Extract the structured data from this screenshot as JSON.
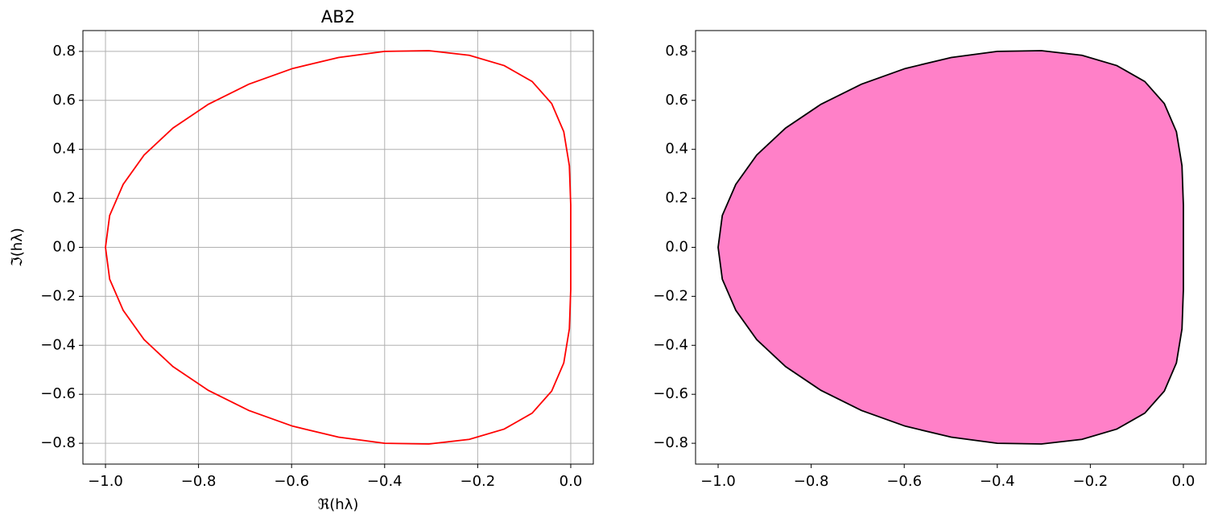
{
  "chart_data": [
    {
      "type": "line",
      "title": "AB2",
      "xlabel": "ℜ(hλ)",
      "ylabel": "ℑ(hλ)",
      "grid": true,
      "series": [
        {
          "color": "#ff0000",
          "x": [
            0,
            0,
            -0.003,
            -0.015,
            -0.041,
            -0.083,
            -0.143,
            -0.218,
            -0.305,
            -0.4,
            -0.499,
            -0.598,
            -0.692,
            -0.779,
            -0.855,
            -0.917,
            -0.962,
            -0.991,
            -1,
            -0.991,
            -0.962,
            -0.917,
            -0.855,
            -0.779,
            -0.692,
            -0.598,
            -0.499,
            -0.4,
            -0.305,
            -0.218,
            -0.143,
            -0.083,
            -0.041,
            -0.015,
            -0.003,
            0,
            0
          ],
          "values": [
            0,
            0.172,
            0.333,
            0.472,
            0.587,
            0.677,
            0.742,
            0.784,
            0.803,
            0.8,
            0.775,
            0.73,
            0.666,
            0.584,
            0.487,
            0.377,
            0.257,
            0.13,
            0,
            -0.13,
            -0.257,
            -0.377,
            -0.487,
            -0.584,
            -0.666,
            -0.73,
            -0.775,
            -0.8,
            -0.803,
            -0.784,
            -0.742,
            -0.677,
            -0.587,
            -0.472,
            -0.333,
            -0.172,
            0
          ]
        }
      ],
      "xlim": [
        -1.0485,
        0.0485
      ],
      "ylim": [
        -0.885,
        0.885
      ],
      "xticks": [
        {
          "value": -1,
          "label": "−1.0"
        },
        {
          "value": -0.8,
          "label": "−0.8"
        },
        {
          "value": -0.6,
          "label": "−0.6"
        },
        {
          "value": -0.4,
          "label": "−0.4"
        },
        {
          "value": -0.2,
          "label": "−0.2"
        },
        {
          "value": 0,
          "label": "0.0"
        }
      ],
      "yticks": [
        {
          "value": -0.8,
          "label": "−0.8"
        },
        {
          "value": -0.6,
          "label": "−0.6"
        },
        {
          "value": -0.4,
          "label": "−0.4"
        },
        {
          "value": -0.2,
          "label": "−0.2"
        },
        {
          "value": 0,
          "label": "0.0"
        },
        {
          "value": 0.2,
          "label": "0.2"
        },
        {
          "value": 0.4,
          "label": "0.4"
        },
        {
          "value": 0.6,
          "label": "0.6"
        },
        {
          "value": 0.8,
          "label": "0.8"
        }
      ]
    },
    {
      "type": "area",
      "grid": false,
      "series": [
        {
          "color": "#000000",
          "fill": "#ff80c8",
          "x": [
            0,
            0,
            -0.003,
            -0.015,
            -0.041,
            -0.083,
            -0.143,
            -0.218,
            -0.305,
            -0.4,
            -0.499,
            -0.598,
            -0.692,
            -0.779,
            -0.855,
            -0.917,
            -0.962,
            -0.991,
            -1,
            -0.991,
            -0.962,
            -0.917,
            -0.855,
            -0.779,
            -0.692,
            -0.598,
            -0.499,
            -0.4,
            -0.305,
            -0.218,
            -0.143,
            -0.083,
            -0.041,
            -0.015,
            -0.003,
            0,
            0
          ],
          "values": [
            0,
            0.172,
            0.333,
            0.472,
            0.587,
            0.677,
            0.742,
            0.784,
            0.803,
            0.8,
            0.775,
            0.73,
            0.666,
            0.584,
            0.487,
            0.377,
            0.257,
            0.13,
            0,
            -0.13,
            -0.257,
            -0.377,
            -0.487,
            -0.584,
            -0.666,
            -0.73,
            -0.775,
            -0.8,
            -0.803,
            -0.784,
            -0.742,
            -0.677,
            -0.587,
            -0.472,
            -0.333,
            -0.172,
            0
          ]
        }
      ],
      "xlim": [
        -1.0485,
        0.0485
      ],
      "ylim": [
        -0.885,
        0.885
      ],
      "xticks": [
        {
          "value": -1,
          "label": "−1.0"
        },
        {
          "value": -0.8,
          "label": "−0.8"
        },
        {
          "value": -0.6,
          "label": "−0.6"
        },
        {
          "value": -0.4,
          "label": "−0.4"
        },
        {
          "value": -0.2,
          "label": "−0.2"
        },
        {
          "value": 0,
          "label": "0.0"
        }
      ],
      "yticks": [
        {
          "value": -0.8,
          "label": "−0.8"
        },
        {
          "value": -0.6,
          "label": "−0.6"
        },
        {
          "value": -0.4,
          "label": "−0.4"
        },
        {
          "value": -0.2,
          "label": "−0.2"
        },
        {
          "value": 0,
          "label": "0.0"
        },
        {
          "value": 0.2,
          "label": "0.2"
        },
        {
          "value": 0.4,
          "label": "0.4"
        },
        {
          "value": 0.6,
          "label": "0.6"
        },
        {
          "value": 0.8,
          "label": "0.8"
        }
      ]
    }
  ]
}
